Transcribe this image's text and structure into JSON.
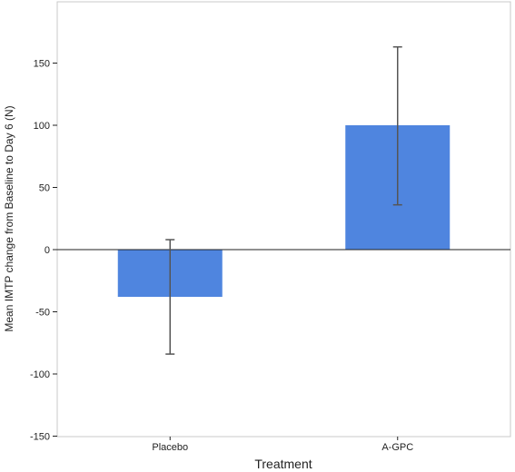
{
  "chart_data": {
    "type": "bar",
    "categories": [
      "Placebo",
      "A-GPC"
    ],
    "values": [
      -38,
      100
    ],
    "error_bars": [
      {
        "low": -84,
        "high": 8
      },
      {
        "low": 36,
        "high": 163
      }
    ],
    "title": "",
    "xlabel": "Treatment",
    "ylabel": "Mean IMTP change from Baseline to Day 6 (N)",
    "ylim": [
      -150,
      200
    ],
    "yticks": [
      -150,
      -100,
      -50,
      0,
      50,
      100,
      150
    ],
    "grid": false,
    "legend": "none",
    "bar_color": "#4f85df"
  }
}
